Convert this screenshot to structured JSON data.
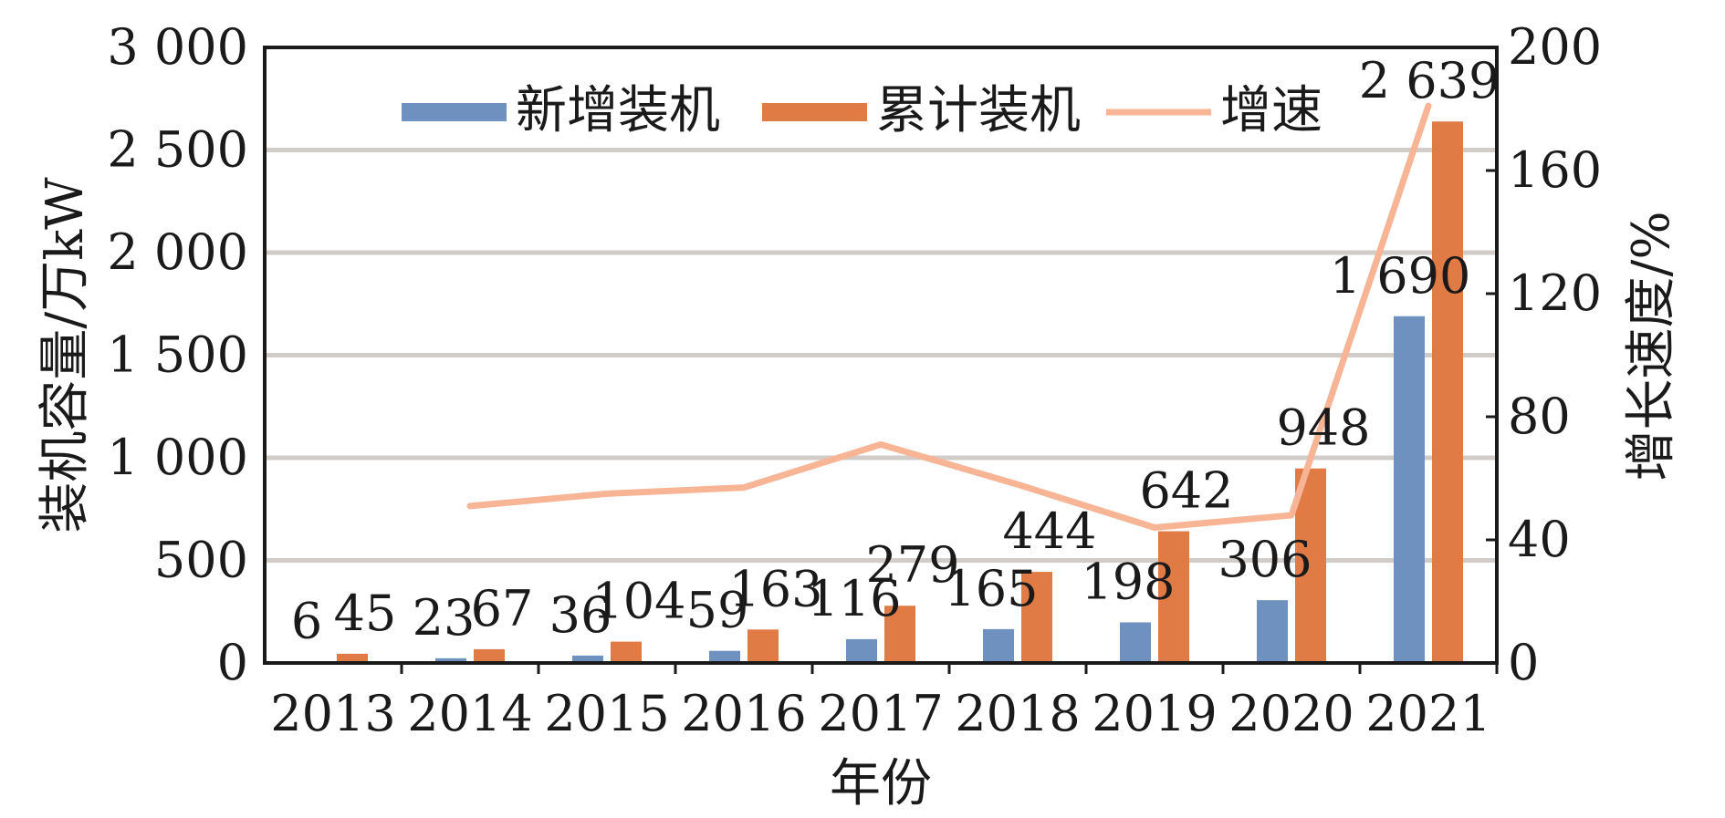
{
  "chart_data": {
    "type": "bar",
    "categories": [
      "2013",
      "2014",
      "2015",
      "2016",
      "2017",
      "2018",
      "2019",
      "2020",
      "2021"
    ],
    "series": [
      {
        "name": "新增装机",
        "kind": "bar",
        "axis": "left",
        "color": "#6f91bf",
        "values": [
          6,
          23,
          36,
          59,
          116,
          165,
          198,
          306,
          1690
        ],
        "labels": [
          "6",
          "23",
          "36",
          "59",
          "116",
          "165",
          "198",
          "306",
          "1 690"
        ]
      },
      {
        "name": "累计装机",
        "kind": "bar",
        "axis": "left",
        "color": "#e07b45",
        "values": [
          45,
          67,
          104,
          163,
          279,
          444,
          642,
          948,
          2639
        ],
        "labels": [
          "45",
          "67",
          "104",
          "163",
          "279",
          "444",
          "642",
          "948",
          "2 639"
        ]
      },
      {
        "name": "增速",
        "kind": "line",
        "axis": "right",
        "color": "#f7b596",
        "values": [
          null,
          51,
          55,
          57,
          71,
          58,
          44,
          48,
          181
        ]
      }
    ],
    "xlabel": "年份",
    "ylabel": "装机容量/万kW",
    "y2label": "增长速度/%",
    "ylim": [
      0,
      3000
    ],
    "y2lim": [
      0,
      200
    ],
    "yticks": [
      "0",
      "500",
      "1 000",
      "1 500",
      "2 000",
      "2 500",
      "3 000"
    ],
    "y2ticks": [
      "0",
      "40",
      "80",
      "120",
      "160",
      "200"
    ],
    "grid": true,
    "legend_position": "top"
  }
}
